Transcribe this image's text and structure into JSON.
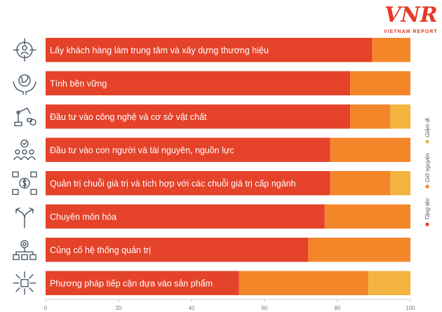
{
  "logo": {
    "text": "VNR",
    "subtitle": "VIETNAM REPORT"
  },
  "chart_data": {
    "type": "bar",
    "orientation": "horizontal",
    "stacked": true,
    "categories": [
      "Lấy khách hàng làm trung tâm và xây dựng thương hiệu",
      "Tính bền vững",
      "Đầu tư vào công nghệ và cơ sở vật chất",
      "Đầu tư vào con người và tài nguyên, nguồn lực",
      "Quản trị chuỗi giá trị và tích hợp với các chuỗi giá trị cấp ngành",
      "Chuyên môn hóa",
      "Củng cố hệ thống quản trị",
      "Phương pháp tiếp cận dựa vào sản phẩm"
    ],
    "series": [
      {
        "name": "Tăng lên",
        "color": "#e5422a",
        "values": [
          89.5,
          83.5,
          83.5,
          78,
          78,
          76.5,
          72,
          53
        ]
      },
      {
        "name": "Giữ nguyên",
        "color": "#f4862a",
        "values": [
          10.5,
          16.5,
          11,
          22,
          16.5,
          23.5,
          28,
          35.5
        ]
      },
      {
        "name": "Giảm đi",
        "color": "#f3b53f",
        "values": [
          0,
          0,
          5.5,
          0,
          5.5,
          0,
          0,
          11.5
        ]
      }
    ],
    "xlim": [
      0,
      100
    ],
    "xticks": [
      "0",
      "20",
      "40",
      "60",
      "80",
      "100"
    ],
    "legend_position": "right-vertical",
    "icons": [
      "customer-target-icon",
      "globe-hands-icon",
      "robot-arm-icon",
      "people-team-icon",
      "supply-chain-dollar-icon",
      "split-arrows-icon",
      "network-gear-icon",
      "product-box-arrows-icon"
    ]
  }
}
